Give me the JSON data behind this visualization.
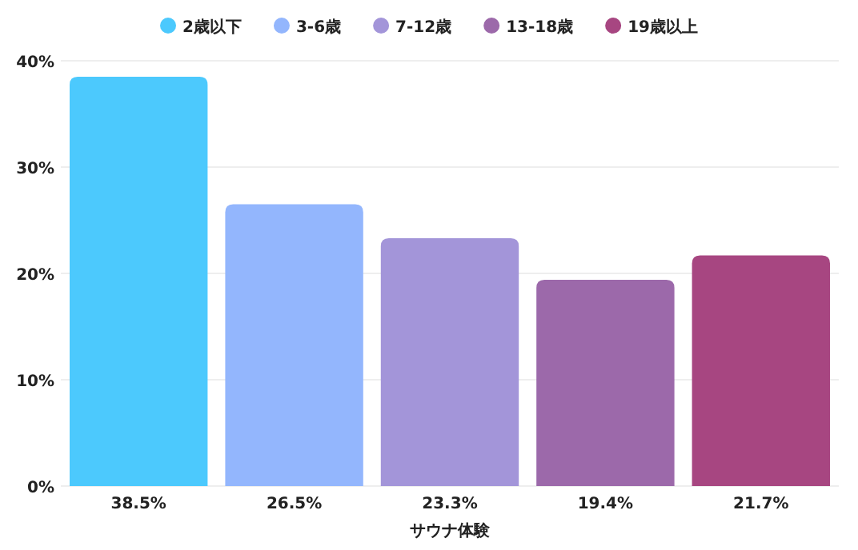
{
  "chart_data": {
    "type": "bar",
    "categories": [
      "サウナ体験"
    ],
    "series": [
      {
        "name": "2歳以下",
        "color": "#4cc9fd",
        "values": [
          38.5
        ],
        "value_labels": [
          "38.5%"
        ]
      },
      {
        "name": "3-6歳",
        "color": "#93b6fd",
        "values": [
          26.5
        ],
        "value_labels": [
          "26.5%"
        ]
      },
      {
        "name": "7-12歳",
        "color": "#a395d9",
        "values": [
          23.3
        ],
        "value_labels": [
          "23.3%"
        ]
      },
      {
        "name": "13-18歳",
        "color": "#9c69aa",
        "values": [
          19.4
        ],
        "value_labels": [
          "19.4%"
        ]
      },
      {
        "name": "19歳以上",
        "color": "#a74681",
        "values": [
          21.7
        ],
        "value_labels": [
          "21.7%"
        ]
      }
    ],
    "ylim": [
      0,
      40
    ],
    "yticks": [
      {
        "value": 0,
        "label": "0%"
      },
      {
        "value": 10,
        "label": "10%"
      },
      {
        "value": 20,
        "label": "20%"
      },
      {
        "value": 30,
        "label": "30%"
      },
      {
        "value": 40,
        "label": "40%"
      }
    ],
    "grid": "y",
    "legend": "top",
    "marker": "circle"
  }
}
